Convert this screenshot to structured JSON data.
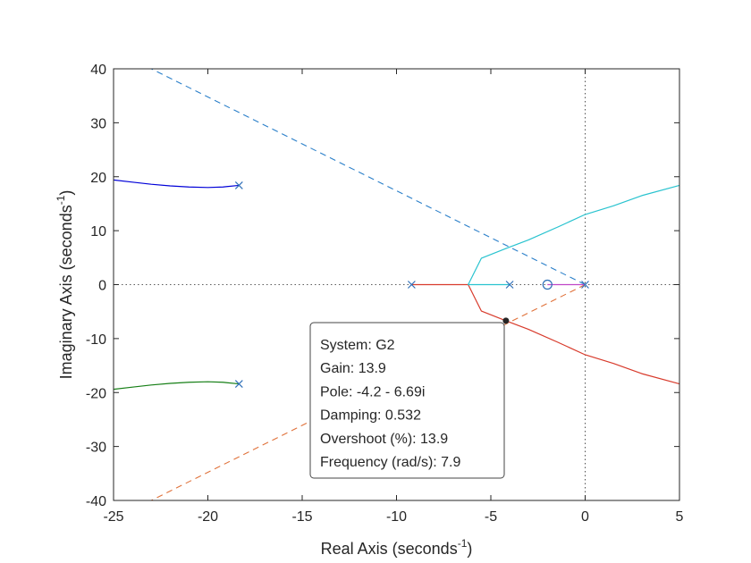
{
  "chart_data": {
    "type": "scatter",
    "subtype": "root-locus",
    "title": "",
    "xlabel": "Real Axis (seconds",
    "ylabel": "Imaginary Axis (seconds",
    "unit_superscript": "-1",
    "xlabel_close": ")",
    "ylabel_close": ")",
    "xlim": [
      -25,
      5
    ],
    "ylim": [
      -40,
      40
    ],
    "xticks": [
      -25,
      -20,
      -15,
      -10,
      -5,
      0,
      5
    ],
    "yticks": [
      -40,
      -30,
      -20,
      -10,
      0,
      10,
      20,
      30,
      40
    ],
    "grid": false,
    "poles": [
      {
        "x": -18.35,
        "y": 18.4
      },
      {
        "x": -18.35,
        "y": -18.4
      },
      {
        "x": -9.2,
        "y": 0
      },
      {
        "x": -4.0,
        "y": 0
      },
      {
        "x": 0,
        "y": 0
      }
    ],
    "zeros": [
      {
        "x": -2.0,
        "y": 0
      }
    ],
    "series": [
      {
        "color": "#0000d8",
        "points": [
          [
            -25,
            19.4
          ],
          [
            -24,
            19.0
          ],
          [
            -23,
            18.6
          ],
          [
            -22,
            18.3
          ],
          [
            -21,
            18.1
          ],
          [
            -20,
            18.0
          ],
          [
            -19.2,
            18.1
          ],
          [
            -18.35,
            18.4
          ]
        ]
      },
      {
        "color": "#167f16",
        "points": [
          [
            -25,
            -19.4
          ],
          [
            -24,
            -19.0
          ],
          [
            -23,
            -18.6
          ],
          [
            -22,
            -18.3
          ],
          [
            -21,
            -18.1
          ],
          [
            -20,
            -18.0
          ],
          [
            -19.2,
            -18.1
          ],
          [
            -18.35,
            -18.4
          ]
        ]
      },
      {
        "color": "#d83b2c",
        "points": [
          [
            -9.2,
            0
          ],
          [
            -6.2,
            0
          ],
          [
            -5.5,
            -4.9
          ],
          [
            -4.2,
            -6.69
          ],
          [
            -3,
            -8.3
          ],
          [
            -1.5,
            -10.6
          ],
          [
            0,
            -13.0
          ],
          [
            1.5,
            -14.6
          ],
          [
            3,
            -16.5
          ],
          [
            5,
            -18.4
          ]
        ]
      },
      {
        "color": "#29c3cf",
        "points": [
          [
            -4.0,
            0
          ],
          [
            -6.2,
            0
          ],
          [
            -5.5,
            4.9
          ],
          [
            -4.2,
            6.69
          ],
          [
            -3,
            8.3
          ],
          [
            -1.5,
            10.6
          ],
          [
            0,
            13.0
          ],
          [
            1.5,
            14.6
          ],
          [
            3,
            16.5
          ],
          [
            5,
            18.4
          ]
        ]
      },
      {
        "color": "#c045c8",
        "points": [
          [
            0,
            0
          ],
          [
            -2.0,
            0
          ]
        ]
      }
    ],
    "damping_line_upper": {
      "color": "#2a7fc9",
      "points": [
        [
          0,
          0
        ],
        [
          -23,
          40
        ]
      ]
    },
    "damping_line_lower": {
      "color": "#e0723b",
      "points": [
        [
          0,
          0
        ],
        [
          -23,
          -40
        ]
      ]
    },
    "datatip": {
      "point": {
        "x": -4.2,
        "y": -6.69
      },
      "lines": [
        "System: G2",
        "Gain: 13.9",
        "Pole: -4.2 - 6.69i",
        "Damping: 0.532",
        "Overshoot (%): 13.9",
        "Frequency (rad/s): 7.9"
      ]
    }
  }
}
